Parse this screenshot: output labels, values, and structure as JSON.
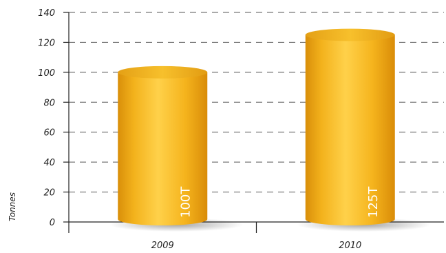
{
  "chart_data": {
    "type": "bar",
    "categories": [
      "2009",
      "2010"
    ],
    "values": [
      100,
      125
    ],
    "data_labels": [
      "100T",
      "125T"
    ],
    "ylabel": "Tonnes",
    "ylim": [
      0,
      140
    ],
    "yticks": [
      0,
      20,
      40,
      60,
      80,
      100,
      120,
      140
    ],
    "grid": true,
    "bar_color": "#f2b21a"
  }
}
